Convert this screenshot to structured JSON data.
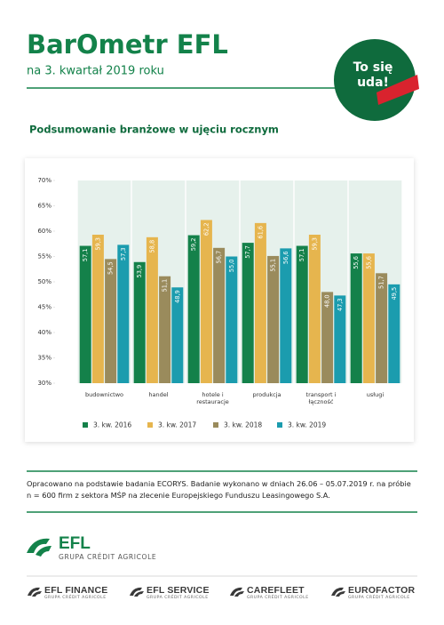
{
  "header": {
    "title": "BarOmetr EFL",
    "subtitle": "na 3. kwartał 2019 roku"
  },
  "badge": {
    "lines": [
      "To się",
      "uda!"
    ]
  },
  "chart_data": {
    "type": "bar",
    "title": "Podsumowanie branżowe w ujęciu rocznym",
    "categories": [
      "budownictwo",
      "handel",
      "hotele i restauracje",
      "produkcja",
      "transport i łączność",
      "usługi"
    ],
    "series": [
      {
        "name": "3. kw. 2016",
        "color": "#14814a",
        "values": [
          57.1,
          53.9,
          59.2,
          57.7,
          57.1,
          55.6
        ],
        "value_labels": [
          "57,1",
          "53,9",
          "59,2",
          "57,7",
          "57,1",
          "55,6"
        ]
      },
      {
        "name": "3. kw. 2017",
        "color": "#e6b54e",
        "values": [
          59.3,
          58.8,
          62.2,
          61.6,
          59.3,
          55.6
        ],
        "value_labels": [
          "59,3",
          "58,8",
          "62,2",
          "61,6",
          "59,3",
          "55,6"
        ]
      },
      {
        "name": "3. kw. 2018",
        "color": "#9a8b5c",
        "values": [
          54.5,
          51.1,
          56.7,
          55.1,
          48.0,
          51.7
        ],
        "value_labels": [
          "54,5",
          "51,1",
          "56,7",
          "55,1",
          "48,0",
          "51,7"
        ]
      },
      {
        "name": "3. kw. 2019",
        "color": "#1b9cae",
        "values": [
          57.3,
          48.9,
          55.0,
          56.6,
          47.3,
          49.5
        ],
        "value_labels": [
          "57,3",
          "48,9",
          "55,0",
          "56,6",
          "47,3",
          "49,5"
        ]
      }
    ],
    "ylim": [
      30,
      70
    ],
    "yticks": [
      {
        "value": 30,
        "label": "30%"
      },
      {
        "value": 35,
        "label": "35%"
      },
      {
        "value": 40,
        "label": "40%"
      },
      {
        "value": 45,
        "label": "45%"
      },
      {
        "value": 50,
        "label": "50%"
      },
      {
        "value": 55,
        "label": "55%"
      },
      {
        "value": 60,
        "label": "60%"
      },
      {
        "value": 65,
        "label": "65%"
      },
      {
        "value": 70,
        "label": "70%"
      }
    ],
    "grid": false,
    "legend": "bottom"
  },
  "note": "Opracowano na podstawie badania ECORYS. Badanie wykonano w dniach 26.06 – 05.07.2019 r. na próbie n = 600 firm z sektora MŚP na zlecenie Europejskiego Funduszu Leasingowego S.A.",
  "footer": {
    "logo": {
      "name": "EFL",
      "group": "GRUPA CRÉDIT AGRICOLE"
    },
    "brands": [
      {
        "name": "EFL FINANCE",
        "group": "GRUPA CRÉDIT AGRICOLE"
      },
      {
        "name": "EFL SERVICE",
        "group": "GRUPA CRÉDIT AGRICOLE"
      },
      {
        "name": "CAREFLEET",
        "group": "GRUPA CRÉDIT AGRICOLE"
      },
      {
        "name": "EUROFACTOR",
        "group": "GRUPA CRÉDIT AGRICOLE"
      }
    ]
  }
}
